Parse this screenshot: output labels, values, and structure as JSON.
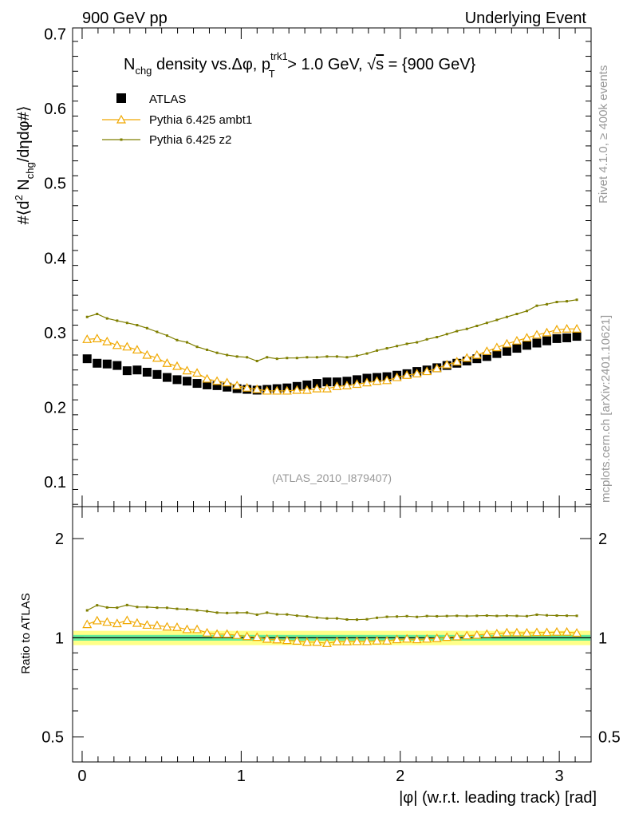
{
  "header": {
    "left": "900 GeV pp",
    "right": "Underlying Event"
  },
  "side": {
    "rivet": "Rivet 4.1.0, ≥ 400k events",
    "mcplots": "mcplots.cern.ch [arXiv:2401.10621]"
  },
  "colors": {
    "atlas": "#000000",
    "ambt1": "#f0a800",
    "z2": "#7f7f00",
    "band_inner": "#66ee99",
    "band_outer": "#ffff88",
    "watermark": "#999999"
  },
  "chart_data": [
    {
      "type": "scatter",
      "panel": "main",
      "title": "N_chg density vs. Δφ, p_T^trk1 > 1.0 GeV, √s = {900 GeV}",
      "title_parts": {
        "n": "N",
        "chg": "chg",
        "mid": " density vs.",
        "dphi": "Δφ",
        "p": ", p",
        "t": "T",
        "trk1": "trk1",
        "gt": " > 1.0 GeV, ",
        "sqrt": "√",
        "s": "s",
        "rest": " = {900 GeV}"
      },
      "ylabel": "#⟨d² N_chg/dηdφ#⟩",
      "ylabel_parts": {
        "a": "#⟨d",
        "b": "2",
        "c": " N",
        "d": "chg",
        "e": "/dηdφ#⟩"
      },
      "watermark": "(ATLAS_2010_I879407)",
      "xlim": [
        -0.06,
        3.2
      ],
      "ylim": [
        0.067,
        0.708
      ],
      "yticks": [
        0.1,
        0.2,
        0.3,
        0.4,
        0.5,
        0.6,
        0.7
      ],
      "ytick_labels": [
        "0.1",
        "0.2",
        "0.3",
        "0.4",
        "0.5",
        "0.6",
        "0.7"
      ],
      "x": [
        0.0314,
        0.0942,
        0.1571,
        0.2199,
        0.2827,
        0.3456,
        0.4084,
        0.4712,
        0.5341,
        0.5969,
        0.6597,
        0.7226,
        0.7854,
        0.8482,
        0.9111,
        0.9739,
        1.0367,
        1.0996,
        1.1624,
        1.2252,
        1.2881,
        1.3509,
        1.4137,
        1.4765,
        1.5394,
        1.6022,
        1.665,
        1.7279,
        1.7907,
        1.8535,
        1.9164,
        1.9792,
        2.042,
        2.1049,
        2.1677,
        2.2305,
        2.2934,
        2.3562,
        2.419,
        2.4819,
        2.5447,
        2.6075,
        2.6704,
        2.7332,
        2.796,
        2.8588,
        2.9217,
        2.9845,
        3.0473,
        3.1102
      ],
      "legend": [
        "ATLAS",
        "Pythia 6.425 ambt1",
        "Pythia 6.425 z2"
      ],
      "series": [
        {
          "name": "ATLAS",
          "marker": "square",
          "values": [
            0.265,
            0.259,
            0.258,
            0.256,
            0.249,
            0.25,
            0.247,
            0.244,
            0.24,
            0.237,
            0.235,
            0.232,
            0.23,
            0.229,
            0.227,
            0.225,
            0.224,
            0.223,
            0.224,
            0.225,
            0.226,
            0.228,
            0.23,
            0.232,
            0.234,
            0.234,
            0.235,
            0.237,
            0.239,
            0.24,
            0.241,
            0.243,
            0.245,
            0.248,
            0.25,
            0.253,
            0.256,
            0.259,
            0.262,
            0.265,
            0.268,
            0.272,
            0.275,
            0.279,
            0.283,
            0.286,
            0.289,
            0.292,
            0.293,
            0.295
          ]
        },
        {
          "name": "Pythia 6.425 ambt1",
          "marker": "triangle",
          "values": [
            0.291,
            0.292,
            0.288,
            0.283,
            0.281,
            0.277,
            0.27,
            0.266,
            0.259,
            0.255,
            0.249,
            0.246,
            0.238,
            0.235,
            0.233,
            0.229,
            0.226,
            0.224,
            0.222,
            0.222,
            0.222,
            0.223,
            0.223,
            0.225,
            0.225,
            0.228,
            0.229,
            0.231,
            0.233,
            0.235,
            0.236,
            0.24,
            0.243,
            0.245,
            0.248,
            0.252,
            0.257,
            0.261,
            0.266,
            0.27,
            0.275,
            0.28,
            0.285,
            0.289,
            0.293,
            0.297,
            0.3,
            0.304,
            0.305,
            0.305
          ]
        },
        {
          "name": "Pythia 6.425 z2",
          "marker": "dot",
          "values": [
            0.321,
            0.325,
            0.319,
            0.316,
            0.313,
            0.31,
            0.306,
            0.301,
            0.296,
            0.29,
            0.287,
            0.281,
            0.277,
            0.273,
            0.27,
            0.268,
            0.267,
            0.262,
            0.267,
            0.265,
            0.266,
            0.266,
            0.267,
            0.267,
            0.268,
            0.268,
            0.267,
            0.269,
            0.272,
            0.276,
            0.279,
            0.282,
            0.285,
            0.287,
            0.291,
            0.294,
            0.298,
            0.302,
            0.305,
            0.309,
            0.313,
            0.317,
            0.321,
            0.325,
            0.329,
            0.336,
            0.338,
            0.341,
            0.342,
            0.344
          ]
        }
      ]
    },
    {
      "type": "scatter",
      "panel": "ratio",
      "ylabel": "Ratio to ATLAS",
      "xlabel": "|φ| (w.r.t. leading track) [rad]",
      "xlim": [
        -0.06,
        3.2
      ],
      "yscale": "log",
      "ylim": [
        0.42,
        2.5
      ],
      "yticks": [
        0.5,
        1,
        2
      ],
      "ytick_labels": [
        "0.5",
        "1",
        "2"
      ],
      "xticks": [
        0,
        1,
        2,
        3
      ],
      "xtick_labels": [
        "0",
        "1",
        "2",
        "3"
      ],
      "band": {
        "inner": [
          0.98,
          1.02
        ],
        "outer": [
          0.95,
          1.05
        ]
      },
      "series": [
        {
          "name": "Pythia 6.425 ambt1",
          "values": [
            1.098,
            1.127,
            1.116,
            1.105,
            1.129,
            1.108,
            1.093,
            1.09,
            1.079,
            1.076,
            1.06,
            1.06,
            1.035,
            1.026,
            1.026,
            1.018,
            1.009,
            1.004,
            0.991,
            0.987,
            0.982,
            0.978,
            0.97,
            0.97,
            0.962,
            0.974,
            0.974,
            0.975,
            0.975,
            0.979,
            0.979,
            0.988,
            0.992,
            0.988,
            0.992,
            0.996,
            1.004,
            1.008,
            1.015,
            1.019,
            1.026,
            1.029,
            1.036,
            1.036,
            1.035,
            1.038,
            1.038,
            1.041,
            1.041,
            1.034
          ]
        },
        {
          "name": "Pythia 6.425 z2",
          "values": [
            1.211,
            1.255,
            1.236,
            1.234,
            1.257,
            1.24,
            1.239,
            1.234,
            1.233,
            1.224,
            1.221,
            1.211,
            1.204,
            1.192,
            1.189,
            1.191,
            1.192,
            1.175,
            1.192,
            1.178,
            1.177,
            1.167,
            1.161,
            1.151,
            1.145,
            1.145,
            1.136,
            1.135,
            1.138,
            1.15,
            1.158,
            1.16,
            1.163,
            1.157,
            1.164,
            1.162,
            1.164,
            1.166,
            1.164,
            1.166,
            1.168,
            1.165,
            1.167,
            1.165,
            1.163,
            1.175,
            1.17,
            1.168,
            1.167,
            1.166
          ]
        }
      ]
    }
  ]
}
